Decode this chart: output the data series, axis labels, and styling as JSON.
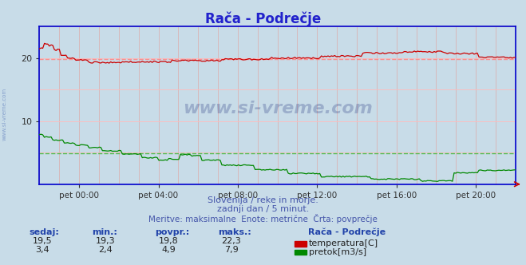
{
  "title": "Rača - Podrečje",
  "bg_color": "#c8dce8",
  "plot_bg_color": "#c8dce8",
  "x_ticks_labels": [
    "pet 00:00",
    "pet 04:00",
    "pet 08:00",
    "pet 12:00",
    "pet 16:00",
    "pet 20:00"
  ],
  "x_ticks_pos": [
    0.0833,
    0.25,
    0.4167,
    0.5833,
    0.75,
    0.9167
  ],
  "ylim": [
    0,
    25
  ],
  "yticks": [
    10,
    20
  ],
  "temp_avg": 19.8,
  "flow_avg": 4.9,
  "temp_color": "#cc0000",
  "flow_color": "#008800",
  "avg_color_temp": "#ff8888",
  "avg_color_flow": "#44bb44",
  "watermark": "www.si-vreme.com",
  "subtitle1": "Slovenija / reke in morje.",
  "subtitle2": "zadnji dan / 5 minut.",
  "subtitle3": "Meritve: maksimalne  Enote: metrične  Črta: povprečje",
  "legend_title": "Rača - Podrečje",
  "legend_items": [
    "temperatura[C]",
    "pretok[m3/s]"
  ],
  "legend_colors": [
    "#cc0000",
    "#008800"
  ],
  "table_headers": [
    "sedaj:",
    "min.:",
    "povpr.:",
    "maks.:"
  ],
  "table_temp": [
    "19,5",
    "19,3",
    "19,8",
    "22,3"
  ],
  "table_flow": [
    "3,4",
    "2,4",
    "4,9",
    "7,9"
  ],
  "title_color": "#2222cc",
  "subtitle_color": "#4455aa",
  "label_color": "#2244aa",
  "tick_color": "#333333",
  "axis_color": "#0000cc",
  "grid_v_color": "#ddaaaa",
  "grid_h_color": "#ffbbbb"
}
